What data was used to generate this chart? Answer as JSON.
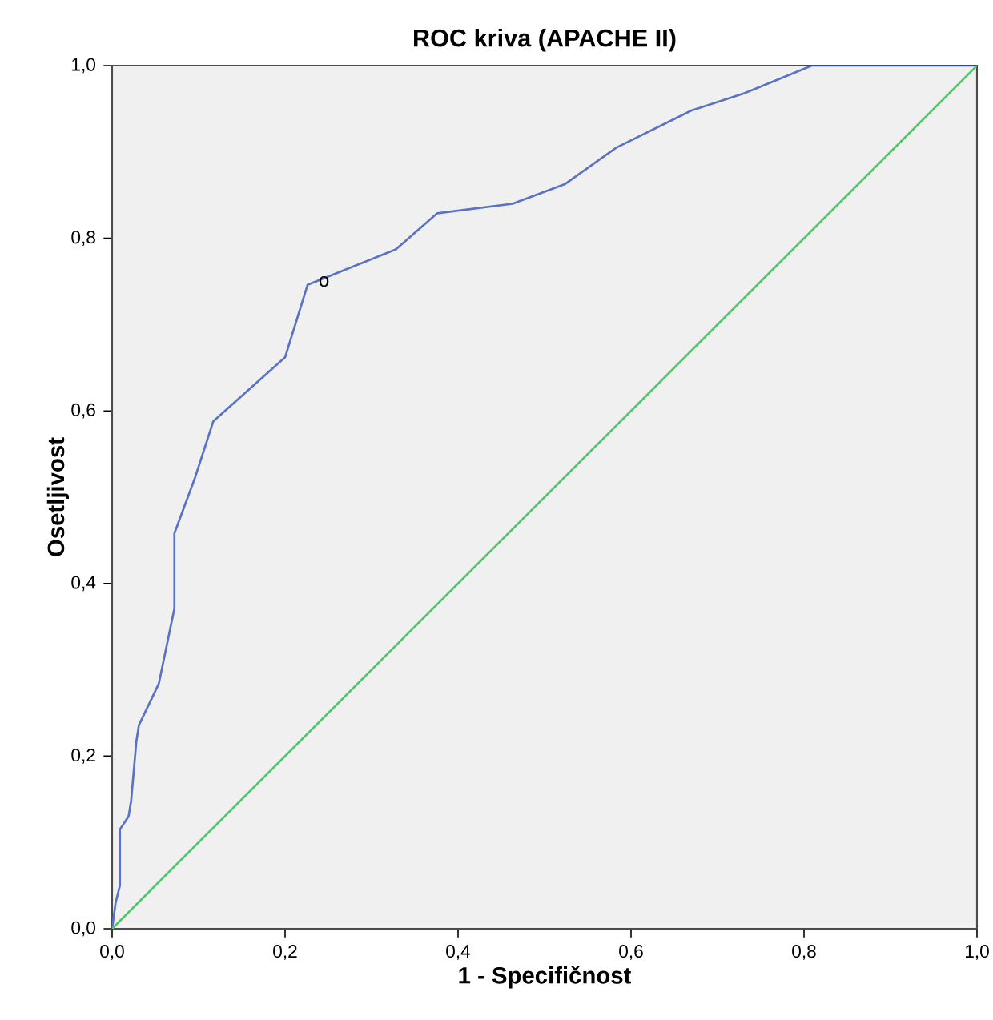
{
  "chart_data": {
    "type": "line",
    "title": "ROC kriva (APACHE II)",
    "xlabel": "1 - Specifičnost",
    "ylabel": "Osetljivost",
    "xlim": [
      0,
      1
    ],
    "ylim": [
      0,
      1
    ],
    "xticks": [
      {
        "value": 0,
        "label": "0,0"
      },
      {
        "value": 0.2,
        "label": "0,2"
      },
      {
        "value": 0.4,
        "label": "0,4"
      },
      {
        "value": 0.6,
        "label": "0,6"
      },
      {
        "value": 0.8,
        "label": "0,8"
      },
      {
        "value": 1,
        "label": "1,0"
      }
    ],
    "yticks": [
      {
        "value": 0,
        "label": "0,0"
      },
      {
        "value": 0.2,
        "label": "0,2"
      },
      {
        "value": 0.4,
        "label": "0,4"
      },
      {
        "value": 0.6,
        "label": "0,6"
      },
      {
        "value": 0.8,
        "label": "0,8"
      },
      {
        "value": 1,
        "label": "1,0"
      }
    ],
    "marker": "none",
    "line_style": "solid",
    "series": [
      {
        "color": "#5a72c4",
        "x": [
          0,
          0.004,
          0.009,
          0.009,
          0.019,
          0.022,
          0.028,
          0.031,
          0.054,
          0.072,
          0.072,
          0.096,
          0.117,
          0.2,
          0.226,
          0.328,
          0.376,
          0.463,
          0.524,
          0.583,
          0.67,
          0.731,
          0.809,
          1
        ],
        "values": [
          0,
          0.03,
          0.05,
          0.115,
          0.13,
          0.148,
          0.217,
          0.236,
          0.284,
          0.371,
          0.458,
          0.523,
          0.588,
          0.662,
          0.746,
          0.787,
          0.829,
          0.84,
          0.863,
          0.905,
          0.948,
          0.968,
          1,
          1
        ]
      },
      {
        "color": "#52c46a",
        "x": [
          0,
          1
        ],
        "values": [
          0,
          1
        ]
      }
    ],
    "annotations": [
      {
        "text": "o",
        "x": 0.245,
        "y": 0.75
      }
    ]
  }
}
